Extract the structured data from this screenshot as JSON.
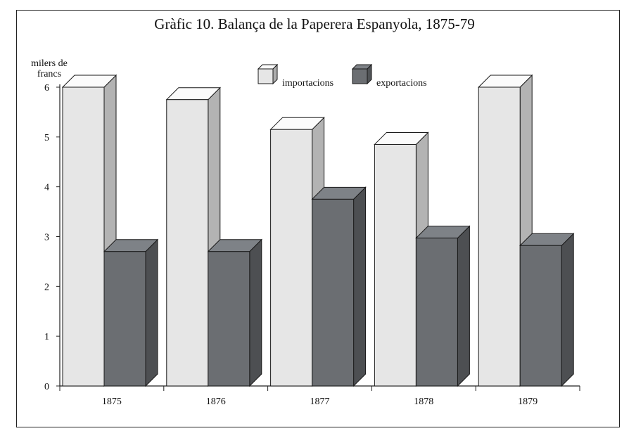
{
  "chart_data": {
    "type": "bar",
    "title": "Gràfic 10. Balança de la Paperera Espanyola, 1875-79",
    "ylabel": "milers de francs",
    "xlabel": "",
    "categories": [
      "1875",
      "1876",
      "1877",
      "1878",
      "1879"
    ],
    "series": [
      {
        "name": "importacions",
        "values": [
          6.0,
          5.75,
          5.15,
          4.85,
          6.0
        ],
        "color": "#e6e6e6"
      },
      {
        "name": "exportacions",
        "values": [
          2.7,
          2.7,
          3.75,
          2.97,
          2.82
        ],
        "color": "#6b6e72"
      }
    ],
    "ylim": [
      0,
      6
    ],
    "yticks": [
      "0",
      "1",
      "2",
      "3",
      "4",
      "5",
      "6"
    ],
    "legend_position": "top-center",
    "grid": false,
    "bar_style": "3d"
  }
}
